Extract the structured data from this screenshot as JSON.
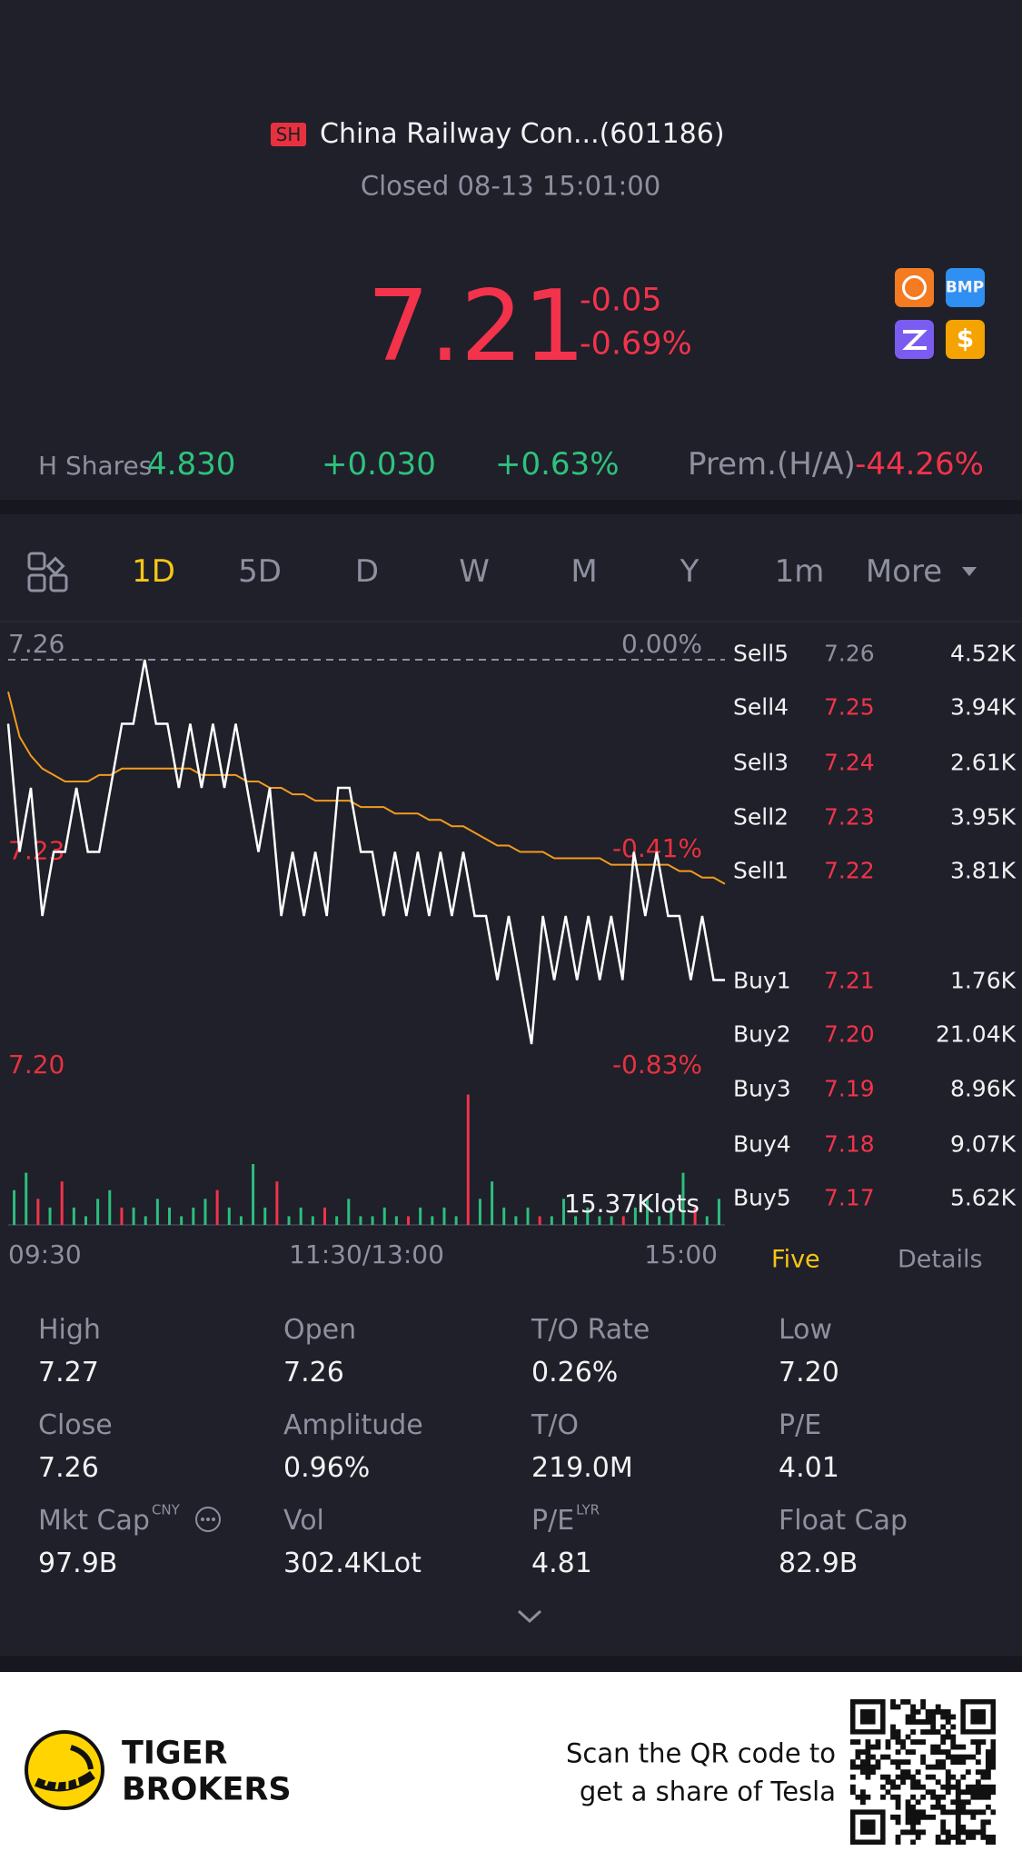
{
  "header": {
    "exchange": "SH",
    "name": "China Railway Con...(601186)",
    "status": "Closed 08-13 15:01:00"
  },
  "quote": {
    "price": "7.21",
    "change": "-0.05",
    "change_pct": "-0.69%",
    "badge": "BMP"
  },
  "h_shares": {
    "label": "H Shares",
    "price": "4.830",
    "change": "+0.030",
    "change_pct": "+0.63%",
    "premium_label": "Prem.(H/A)",
    "premium": "-44.26%"
  },
  "tabs": [
    "1D",
    "5D",
    "D",
    "W",
    "M",
    "Y",
    "1m",
    "More"
  ],
  "chart_data": {
    "type": "line",
    "ylim": [
      7.2,
      7.26
    ],
    "yticks": [
      7.26,
      7.23,
      {
        "value": 7.2,
        "label": "7.20"
      }
    ],
    "y2lim": [
      -0.83,
      0
    ],
    "y2ticks": [
      {
        "value": 0,
        "label": "0.00%"
      },
      {
        "value": -0.41,
        "label": "-0.41%"
      },
      {
        "value": -0.83,
        "label": "-0.83%"
      }
    ],
    "x_labels": [
      "09:30",
      "11:30/13:00",
      "15:00"
    ],
    "series": [
      {
        "color": "#ffffff",
        "values": [
          7.25,
          7.23,
          7.24,
          7.22,
          7.23,
          7.23,
          7.24,
          7.23,
          7.23,
          7.24,
          7.25,
          7.25,
          7.26,
          7.25,
          7.25,
          7.24,
          7.25,
          7.24,
          7.25,
          7.24,
          7.25,
          7.24,
          7.23,
          7.24,
          7.22,
          7.23,
          7.22,
          7.23,
          7.22,
          7.24,
          7.24,
          7.23,
          7.23,
          7.22,
          7.23,
          7.22,
          7.23,
          7.22,
          7.23,
          7.22,
          7.23,
          7.22,
          7.22,
          7.21,
          7.22,
          7.21,
          7.2,
          7.22,
          7.21,
          7.22,
          7.21,
          7.22,
          7.21,
          7.22,
          7.21,
          7.23,
          7.22,
          7.23,
          7.22,
          7.22,
          7.21,
          7.22,
          7.21,
          7.21
        ]
      },
      {
        "color": "#f39a1e",
        "values": [
          7.255,
          7.248,
          7.245,
          7.243,
          7.242,
          7.241,
          7.241,
          7.241,
          7.242,
          7.242,
          7.243,
          7.243,
          7.243,
          7.243,
          7.243,
          7.243,
          7.243,
          7.242,
          7.242,
          7.242,
          7.242,
          7.241,
          7.241,
          7.24,
          7.24,
          7.239,
          7.239,
          7.238,
          7.238,
          7.238,
          7.238,
          7.237,
          7.237,
          7.237,
          7.236,
          7.236,
          7.236,
          7.235,
          7.235,
          7.234,
          7.234,
          7.233,
          7.232,
          7.231,
          7.231,
          7.23,
          7.23,
          7.23,
          7.229,
          7.229,
          7.229,
          7.229,
          7.229,
          7.228,
          7.228,
          7.228,
          7.228,
          7.228,
          7.228,
          7.227,
          7.227,
          7.226,
          7.226,
          7.225
        ]
      }
    ],
    "volume": {
      "vmax": {
        "value": 15.37,
        "label": "15.37Klots"
      },
      "values": [
        4,
        6,
        3,
        2,
        5,
        2,
        1,
        3,
        4,
        2,
        2,
        1,
        3,
        2,
        1,
        2,
        3,
        4,
        2,
        1,
        7,
        2,
        5,
        1,
        2,
        1,
        2,
        1,
        3,
        1,
        1,
        2,
        1,
        1,
        2,
        1,
        2,
        1,
        15,
        3,
        5,
        2,
        1,
        2,
        1,
        1,
        3,
        1,
        2,
        1,
        1,
        1,
        2,
        3,
        1,
        2,
        6,
        2,
        1,
        3
      ],
      "colors": [
        "#2dbd7e",
        "#2dbd7e",
        "#f2334b",
        "#2dbd7e",
        "#f2334b",
        "#2dbd7e",
        "#2dbd7e",
        "#2dbd7e",
        "#2dbd7e",
        "#f2334b",
        "#2dbd7e",
        "#2dbd7e",
        "#2dbd7e",
        "#2dbd7e",
        "#2dbd7e",
        "#2dbd7e",
        "#2dbd7e",
        "#f2334b",
        "#2dbd7e",
        "#2dbd7e",
        "#2dbd7e",
        "#2dbd7e",
        "#f2334b",
        "#2dbd7e",
        "#2dbd7e",
        "#2dbd7e",
        "#f2334b",
        "#2dbd7e",
        "#2dbd7e",
        "#2dbd7e",
        "#2dbd7e",
        "#2dbd7e",
        "#2dbd7e",
        "#f2334b",
        "#2dbd7e",
        "#2dbd7e",
        "#2dbd7e",
        "#2dbd7e",
        "#f2334b",
        "#2dbd7e",
        "#2dbd7e",
        "#2dbd7e",
        "#2dbd7e",
        "#2dbd7e",
        "#f2334b",
        "#2dbd7e",
        "#2dbd7e",
        "#2dbd7e",
        "#2dbd7e",
        "#2dbd7e",
        "#2dbd7e",
        "#f2334b",
        "#2dbd7e",
        "#2dbd7e",
        "#2dbd7e",
        "#2dbd7e",
        "#2dbd7e",
        "#f2334b",
        "#2dbd7e",
        "#2dbd7e"
      ]
    }
  },
  "order_book": {
    "rows": [
      {
        "label": "Sell5",
        "price": "7.26",
        "volume": "4.52K"
      },
      {
        "label": "Sell4",
        "price": "7.25",
        "volume": "3.94K"
      },
      {
        "label": "Sell3",
        "price": "7.24",
        "volume": "2.61K"
      },
      {
        "label": "Sell2",
        "price": "7.23",
        "volume": "3.95K"
      },
      {
        "label": "Sell1",
        "price": "7.22",
        "volume": "3.81K"
      },
      {
        "label": "Buy1",
        "price": "7.21",
        "volume": "1.76K"
      },
      {
        "label": "Buy2",
        "price": "7.20",
        "volume": "21.04K"
      },
      {
        "label": "Buy3",
        "price": "7.19",
        "volume": "8.96K"
      },
      {
        "label": "Buy4",
        "price": "7.18",
        "volume": "9.07K"
      },
      {
        "label": "Buy5",
        "price": "7.17",
        "volume": "5.62K"
      }
    ],
    "tabs": [
      "Five",
      "Details"
    ]
  },
  "stats": [
    {
      "label": "High",
      "value": "7.27"
    },
    {
      "label": "Open",
      "value": "7.26"
    },
    {
      "label": "T/O Rate",
      "value": "0.26%"
    },
    {
      "label": "Low",
      "value": "7.20"
    },
    {
      "label": "Close",
      "value": "7.26"
    },
    {
      "label": "Amplitude",
      "value": "0.96%"
    },
    {
      "label": "T/O",
      "value": "219.0M"
    },
    {
      "label": "P/E",
      "value": "4.01"
    },
    {
      "label": "Mkt Cap",
      "sup": "CNY",
      "value": "97.9B"
    },
    {
      "label": "Vol",
      "value": "302.4KLot"
    },
    {
      "label": "P/E",
      "sup": "LYR",
      "value": "4.81"
    },
    {
      "label": "Float Cap",
      "value": "82.9B"
    }
  ],
  "footer": {
    "brand": [
      "TIGER",
      "BROKERS"
    ],
    "promo": [
      "Scan the QR code to",
      "get a share of Tesla"
    ]
  }
}
